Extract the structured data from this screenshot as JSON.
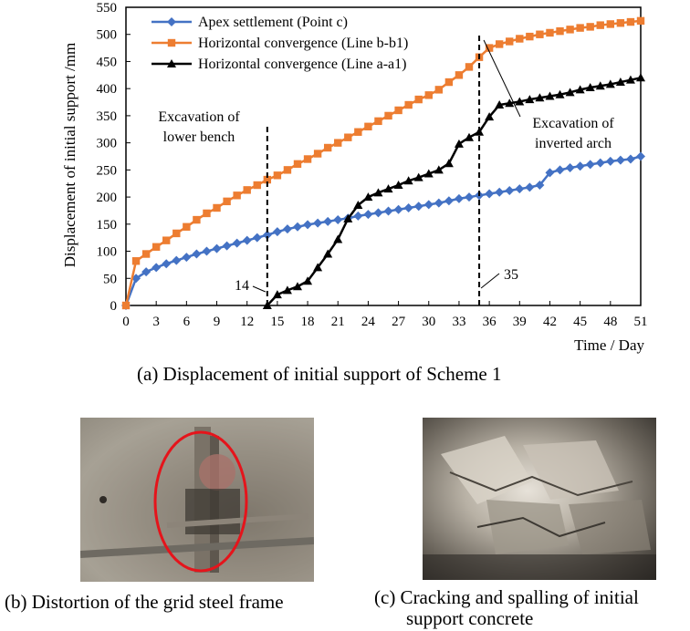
{
  "chart_data": {
    "type": "line",
    "xlabel": "Time / Day",
    "ylabel": "Displacement of initial support /mm",
    "xlim": [
      0,
      51
    ],
    "ylim": [
      0,
      550
    ],
    "xticks": [
      0,
      3,
      6,
      9,
      12,
      15,
      18,
      21,
      24,
      27,
      30,
      33,
      36,
      39,
      42,
      45,
      48,
      51
    ],
    "yticks": [
      0,
      50,
      100,
      150,
      200,
      250,
      300,
      350,
      400,
      450,
      500,
      550
    ],
    "grid": false,
    "legend_position": "top-left",
    "series": [
      {
        "name": "Apex settlement (Point c)",
        "color": "#4472C4",
        "marker": "diamond",
        "x": [
          0,
          1,
          2,
          3,
          4,
          5,
          6,
          7,
          8,
          9,
          10,
          11,
          12,
          13,
          14,
          15,
          16,
          17,
          18,
          19,
          20,
          21,
          22,
          23,
          24,
          25,
          26,
          27,
          28,
          29,
          30,
          31,
          32,
          33,
          34,
          35,
          36,
          37,
          38,
          39,
          40,
          41,
          42,
          43,
          44,
          45,
          46,
          47,
          48,
          49,
          50,
          51
        ],
        "y": [
          0,
          50,
          62,
          70,
          77,
          83,
          89,
          95,
          100,
          105,
          110,
          115,
          120,
          125,
          130,
          136,
          141,
          145,
          149,
          152,
          155,
          158,
          161,
          165,
          168,
          171,
          174,
          177,
          180,
          183,
          186,
          189,
          193,
          197,
          200,
          203,
          206,
          209,
          212,
          215,
          218,
          222,
          245,
          250,
          254,
          257,
          260,
          263,
          266,
          268,
          270,
          275
        ]
      },
      {
        "name": "Horizontal convergence (Line b-b1)",
        "color": "#ED7D31",
        "marker": "square",
        "x": [
          0,
          1,
          2,
          3,
          4,
          5,
          6,
          7,
          8,
          9,
          10,
          11,
          12,
          13,
          14,
          15,
          16,
          17,
          18,
          19,
          20,
          21,
          22,
          23,
          24,
          25,
          26,
          27,
          28,
          29,
          30,
          31,
          32,
          33,
          34,
          35,
          36,
          37,
          38,
          39,
          40,
          41,
          42,
          43,
          44,
          45,
          46,
          47,
          48,
          49,
          50,
          51
        ],
        "y": [
          0,
          82,
          95,
          108,
          120,
          133,
          145,
          158,
          170,
          180,
          192,
          203,
          213,
          222,
          232,
          240,
          250,
          261,
          270,
          280,
          291,
          300,
          310,
          320,
          330,
          340,
          350,
          360,
          370,
          380,
          388,
          398,
          412,
          425,
          440,
          458,
          475,
          482,
          487,
          492,
          496,
          500,
          503,
          506,
          509,
          512,
          514,
          517,
          519,
          521,
          523,
          525
        ]
      },
      {
        "name": "Horizontal convergence (Line a-a1)",
        "color": "#000000",
        "marker": "triangle",
        "x": [
          14,
          15,
          16,
          17,
          18,
          19,
          20,
          21,
          22,
          23,
          24,
          25,
          26,
          27,
          28,
          29,
          30,
          31,
          32,
          33,
          34,
          35,
          36,
          37,
          38,
          39,
          40,
          41,
          42,
          43,
          44,
          45,
          46,
          47,
          48,
          49,
          50,
          51
        ],
        "y": [
          0,
          20,
          28,
          35,
          45,
          70,
          95,
          122,
          160,
          185,
          200,
          208,
          215,
          222,
          230,
          236,
          243,
          250,
          262,
          298,
          310,
          320,
          348,
          370,
          373,
          376,
          380,
          383,
          386,
          389,
          393,
          398,
          402,
          405,
          408,
          412,
          416,
          420
        ]
      }
    ],
    "annotations": [
      {
        "text_lines": [
          "Excavation of",
          "lower bench"
        ],
        "x": 14
      },
      {
        "text_lines": [
          "Excavation of",
          "inverted arch"
        ],
        "x": 35
      },
      {
        "text": "14"
      },
      {
        "text": "35"
      }
    ]
  },
  "captions": {
    "a": "(a) Displacement of initial support of Scheme 1",
    "b": "(b) Distortion of the grid steel frame",
    "c_line1": "(c) Cracking and spalling of initial",
    "c_line2": "support concrete"
  },
  "photos": {
    "b": {
      "highlight_color": "#E5141B"
    }
  }
}
